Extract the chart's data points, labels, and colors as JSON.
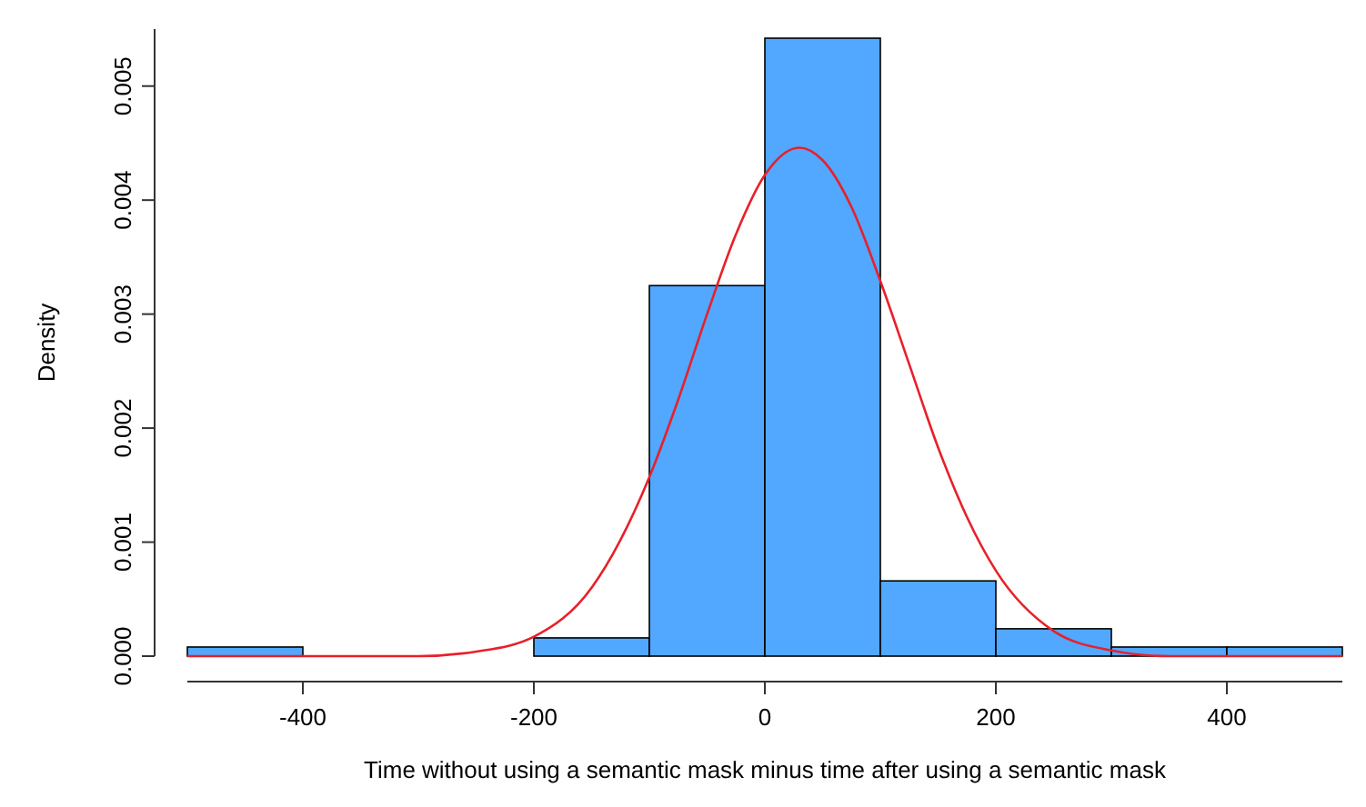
{
  "chart_data": {
    "type": "histogram",
    "xlabel": "Time without using a semantic mask minus time after using a semantic mask",
    "ylabel": "Density",
    "bins": [
      -500,
      -400,
      -300,
      -200,
      -100,
      0,
      100,
      200,
      300,
      400,
      500
    ],
    "values": [
      8e-05,
      0,
      0,
      0.00016,
      0.00325,
      0.00542,
      0.00066,
      0.00024,
      8e-05,
      8e-05
    ],
    "color": "#52a7ff",
    "series": [
      {
        "type": "line",
        "color": "#e8202a",
        "x": [
          -500,
          -400,
          -300,
          -250,
          -200,
          -150,
          -100,
          -75,
          -50,
          -25,
          0,
          30,
          50,
          75,
          100,
          125,
          150,
          175,
          200,
          250,
          300,
          350,
          400,
          500
        ],
        "values": [
          0,
          0,
          0,
          4e-05,
          0.00017,
          0.0006,
          0.00157,
          0.00225,
          0.003,
          0.0037,
          0.00422,
          0.00446,
          0.00435,
          0.00394,
          0.00329,
          0.00256,
          0.00183,
          0.00122,
          0.00075,
          0.00022,
          5e-05,
          0,
          0,
          0
        ]
      }
    ],
    "xlim": [
      -500,
      500
    ],
    "xticks": [
      -400,
      -200,
      0,
      200,
      400
    ],
    "ylim": [
      0,
      0.0055
    ],
    "yticks": [
      {
        "value": 0,
        "label": "0.000"
      },
      {
        "value": 0.001,
        "label": "0.001"
      },
      {
        "value": 0.002,
        "label": "0.002"
      },
      {
        "value": 0.003,
        "label": "0.003"
      },
      {
        "value": 0.004,
        "label": "0.004"
      },
      {
        "value": 0.005,
        "label": "0.005"
      }
    ],
    "grid": false
  }
}
